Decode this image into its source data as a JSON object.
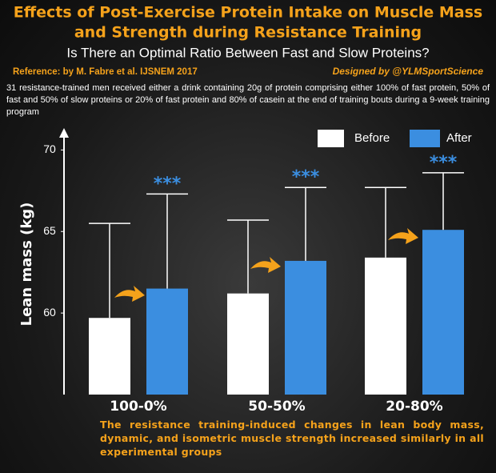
{
  "title": "Effects of Post-Exercise Protein Intake on Muscle Mass and Strength during Resistance Training",
  "subtitle": "Is There an Optimal Ratio Between Fast and Slow Proteins?",
  "reference": "Reference: by M. Fabre et al. IJSNEM 2017",
  "credit": "Designed by @YLMSportScience",
  "description": "31 resistance-trained men received either a drink containing 20g of protein comprising either 100% of fast protein, 50% of fast and 50% of slow proteins or 20% of fast protein and 80% of casein at the end of training bouts during a 9-week training program",
  "conclusion": "The resistance training-induced changes in lean body mass, dynamic, and isometric muscle strength increased similarly in all experimental groups",
  "chart_data": {
    "type": "bar",
    "ylabel": "Lean mass (kg)",
    "categories": [
      "100-0%",
      "50-50%",
      "20-80%"
    ],
    "series": [
      {
        "name": "Before",
        "color": "#ffffff",
        "values": [
          59.7,
          61.2,
          63.4
        ],
        "errors": [
          5.8,
          4.5,
          4.3
        ]
      },
      {
        "name": "After",
        "color": "#3b8ee0",
        "values": [
          61.5,
          63.2,
          65.1
        ],
        "errors": [
          5.8,
          4.5,
          3.5
        ],
        "significance": [
          "***",
          "***",
          "***"
        ]
      }
    ],
    "ylim": [
      55,
      71
    ],
    "yticks": [
      60,
      65,
      70
    ],
    "grid": false,
    "legend": "top-right"
  }
}
